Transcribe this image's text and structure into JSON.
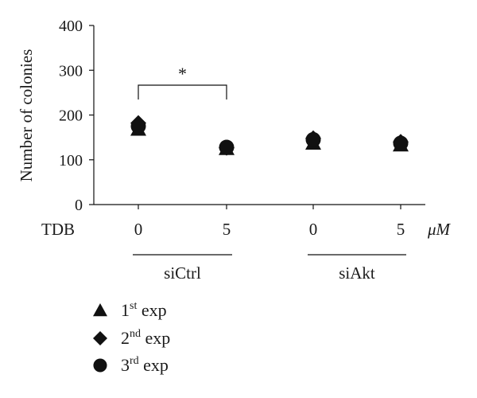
{
  "chart_data": {
    "type": "scatter",
    "ylabel": "Number of colonies",
    "ylim": [
      0,
      400
    ],
    "yticks": [
      0,
      100,
      200,
      300,
      400
    ],
    "x_row_label": "TDB",
    "x_unit": "μM",
    "categories": [
      "0",
      "5",
      "0",
      "5"
    ],
    "groups": [
      {
        "label": "siCtrl",
        "span": [
          0,
          1
        ]
      },
      {
        "label": "siAkt",
        "span": [
          2,
          3
        ]
      }
    ],
    "series": [
      {
        "name": "1st exp",
        "sup": "st",
        "base": "1",
        "tail": " exp",
        "marker": "triangle",
        "values": [
          168,
          125,
          137,
          133
        ]
      },
      {
        "name": "2nd exp",
        "sup": "nd",
        "base": "2",
        "tail": " exp",
        "marker": "diamond",
        "values": [
          182,
          127,
          148,
          140
        ]
      },
      {
        "name": "3rd exp",
        "sup": "rd",
        "base": "3",
        "tail": " exp",
        "marker": "circle",
        "values": [
          175,
          128,
          145,
          137
        ]
      }
    ],
    "significance": [
      {
        "from": 0,
        "to": 1,
        "label": "*"
      }
    ],
    "grid": false,
    "legend_position": "bottom-left",
    "marker_color": "#111111"
  }
}
